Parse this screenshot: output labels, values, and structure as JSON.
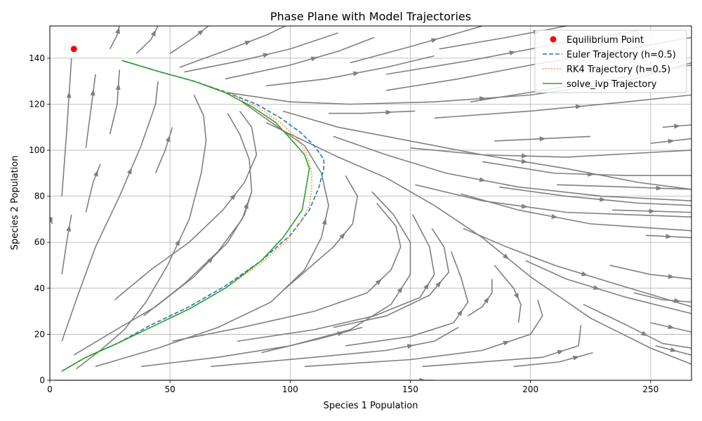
{
  "chart_data": {
    "type": "line",
    "title": "Phase Plane with Model Trajectories",
    "xlabel": "Species 1 Population",
    "ylabel": "Species 2 Population",
    "xlim": [
      0,
      267
    ],
    "ylim": [
      0,
      154
    ],
    "xticks": [
      0,
      50,
      100,
      150,
      200,
      250
    ],
    "yticks": [
      0,
      20,
      40,
      60,
      80,
      100,
      120,
      140
    ],
    "grid": true,
    "legend_position": "top-right",
    "colors": {
      "streamline": "#808080",
      "equilibrium": "#ff0000",
      "euler": "#1f77b4",
      "rk4": "#ff7f0e",
      "solve_ivp": "#2ca02c",
      "grid": "#b0b0b0"
    },
    "equilibrium": {
      "name": "Equilibrium Point",
      "x": 10,
      "y": 144
    },
    "series": [
      {
        "name": "Euler Trajectory (h=0.5)",
        "style": "dashed",
        "x": [
          5,
          15,
          28,
          42,
          58,
          73,
          88,
          100,
          108,
          112,
          114,
          114,
          110,
          104,
          96,
          86,
          74,
          60,
          46,
          30
        ],
        "y": [
          4,
          10,
          16,
          24,
          32,
          41,
          52,
          63,
          74,
          84,
          92,
          96,
          102,
          108,
          114,
          120,
          125,
          130,
          134,
          139
        ]
      },
      {
        "name": "RK4 Trajectory (h=0.5)",
        "style": "dotted",
        "x": [
          5,
          15,
          28,
          42,
          58,
          73,
          88,
          98,
          104,
          108,
          109,
          109,
          107,
          103,
          96,
          86,
          74,
          60,
          46,
          30
        ],
        "y": [
          4,
          10,
          16,
          23,
          31,
          40,
          51,
          60,
          68,
          76,
          83,
          90,
          98,
          105,
          112,
          119,
          125,
          130,
          134,
          139
        ]
      },
      {
        "name": "solve_ivp Trajectory",
        "style": "solid",
        "x": [
          5,
          15,
          28,
          42,
          58,
          73,
          88,
          97,
          105,
          108,
          106,
          101,
          94,
          84,
          73,
          60,
          46,
          30
        ],
        "y": [
          4,
          10,
          16,
          23,
          31,
          40,
          52,
          62,
          74,
          92,
          98,
          104,
          112,
          119,
          125,
          130,
          134,
          139
        ]
      }
    ],
    "streamlines": [
      [
        [
          5,
          17
        ],
        [
          11,
          35
        ],
        [
          19,
          58
        ],
        [
          29,
          80
        ],
        [
          38,
          102
        ],
        [
          44,
          120
        ],
        [
          45,
          130
        ]
      ],
      [
        [
          11,
          5
        ],
        [
          21,
          13
        ],
        [
          31,
          22
        ],
        [
          40,
          34
        ],
        [
          49,
          50
        ],
        [
          58,
          70
        ],
        [
          63,
          90
        ],
        [
          65,
          104
        ],
        [
          64,
          115
        ],
        [
          60,
          124
        ]
      ],
      [
        [
          10,
          11
        ],
        [
          26,
          21
        ],
        [
          44,
          32
        ],
        [
          60,
          45
        ],
        [
          74,
          60
        ],
        [
          81,
          72
        ],
        [
          84,
          82
        ]
      ],
      [
        [
          39,
          28
        ],
        [
          56,
          42
        ],
        [
          70,
          56
        ],
        [
          80,
          70
        ],
        [
          84,
          82
        ],
        [
          83,
          96
        ],
        [
          79,
          107
        ],
        [
          74,
          116
        ]
      ],
      [
        [
          27,
          35
        ],
        [
          42,
          48
        ],
        [
          58,
          60
        ],
        [
          72,
          74
        ],
        [
          81,
          86
        ],
        [
          86,
          98
        ],
        [
          84,
          110
        ],
        [
          79,
          117
        ]
      ],
      [
        [
          19,
          6
        ],
        [
          45,
          14
        ],
        [
          70,
          23
        ],
        [
          92,
          34
        ],
        [
          106,
          48
        ],
        [
          113,
          62
        ],
        [
          116,
          76
        ],
        [
          113,
          90
        ],
        [
          106,
          102
        ],
        [
          95,
          110
        ],
        [
          80,
          121
        ]
      ],
      [
        [
          38,
          6
        ],
        [
          70,
          10
        ],
        [
          100,
          15
        ],
        [
          125,
          22
        ],
        [
          142,
          33
        ],
        [
          150,
          46
        ],
        [
          150,
          60
        ],
        [
          143,
          72
        ],
        [
          134,
          82
        ]
      ],
      [
        [
          51,
          17
        ],
        [
          80,
          23
        ],
        [
          110,
          30
        ],
        [
          132,
          38
        ],
        [
          142,
          48
        ],
        [
          146,
          58
        ],
        [
          144,
          67
        ],
        [
          136,
          77
        ]
      ],
      [
        [
          67,
          6
        ],
        [
          110,
          10
        ],
        [
          140,
          13
        ],
        [
          160,
          17
        ],
        [
          170,
          23
        ]
      ],
      [
        [
          106,
          6
        ],
        [
          150,
          9
        ],
        [
          180,
          13
        ],
        [
          200,
          20
        ],
        [
          205,
          28
        ],
        [
          203,
          35
        ]
      ],
      [
        [
          155,
          6
        ],
        [
          180,
          8
        ],
        [
          205,
          10
        ],
        [
          220,
          15
        ],
        [
          221,
          24
        ]
      ],
      [
        [
          193,
          6
        ],
        [
          212,
          8
        ],
        [
          226,
          12
        ]
      ],
      [
        [
          78,
          17
        ],
        [
          110,
          22
        ],
        [
          135,
          28
        ],
        [
          154,
          36
        ],
        [
          160,
          46
        ],
        [
          158,
          58
        ],
        [
          151,
          72
        ]
      ],
      [
        [
          118,
          23
        ],
        [
          140,
          28
        ],
        [
          158,
          37
        ],
        [
          166,
          47
        ],
        [
          164,
          58
        ],
        [
          159,
          66
        ]
      ],
      [
        [
          123,
          15
        ],
        [
          150,
          19
        ],
        [
          168,
          25
        ],
        [
          174,
          34
        ],
        [
          171,
          45
        ],
        [
          167,
          56
        ]
      ],
      [
        [
          174,
          28
        ],
        [
          180,
          32
        ],
        [
          184,
          38
        ],
        [
          184,
          44
        ]
      ],
      [
        [
          185,
          50
        ],
        [
          193,
          40
        ],
        [
          196,
          33
        ],
        [
          195,
          25
        ]
      ],
      [
        [
          97,
          39
        ],
        [
          107,
          48
        ],
        [
          118,
          58
        ],
        [
          126,
          68
        ],
        [
          128,
          80
        ],
        [
          123,
          89
        ]
      ],
      [
        [
          88,
          12
        ],
        [
          112,
          18
        ],
        [
          130,
          23
        ]
      ],
      [
        [
          74,
          125
        ],
        [
          100,
          121
        ],
        [
          125,
          120
        ],
        [
          160,
          121
        ],
        [
          200,
          124
        ],
        [
          240,
          130
        ],
        [
          267,
          138
        ]
      ],
      [
        [
          97,
          117
        ],
        [
          120,
          110
        ],
        [
          150,
          104
        ],
        [
          180,
          98
        ],
        [
          215,
          92
        ],
        [
          245,
          86
        ],
        [
          267,
          83
        ]
      ],
      [
        [
          118,
          106
        ],
        [
          140,
          98
        ],
        [
          165,
          90
        ],
        [
          195,
          84
        ],
        [
          230,
          80
        ],
        [
          267,
          78
        ]
      ],
      [
        [
          90,
          112
        ],
        [
          120,
          97
        ],
        [
          140,
          88
        ],
        [
          160,
          76
        ],
        [
          180,
          62
        ],
        [
          200,
          45
        ],
        [
          225,
          27
        ],
        [
          250,
          14
        ],
        [
          267,
          7
        ]
      ],
      [
        [
          172,
          66
        ],
        [
          190,
          58
        ],
        [
          210,
          50
        ],
        [
          235,
          42
        ],
        [
          267,
          32
        ]
      ],
      [
        [
          198,
          52
        ],
        [
          215,
          44
        ],
        [
          240,
          36
        ],
        [
          267,
          29
        ]
      ],
      [
        [
          171,
          81
        ],
        [
          195,
          74
        ],
        [
          225,
          68
        ],
        [
          267,
          65
        ]
      ],
      [
        [
          152,
          85
        ],
        [
          180,
          78
        ],
        [
          215,
          73
        ],
        [
          267,
          71
        ]
      ],
      [
        [
          187,
          84
        ],
        [
          215,
          80
        ],
        [
          245,
          77
        ],
        [
          267,
          76
        ]
      ],
      [
        [
          222,
          33
        ],
        [
          240,
          24
        ],
        [
          255,
          16
        ],
        [
          267,
          14
        ]
      ],
      [
        [
          233,
          50
        ],
        [
          250,
          46
        ],
        [
          267,
          44
        ]
      ],
      [
        [
          243,
          38
        ],
        [
          255,
          35
        ],
        [
          267,
          34
        ]
      ],
      [
        [
          250,
          25
        ],
        [
          267,
          21
        ]
      ],
      [
        [
          252,
          15
        ],
        [
          267,
          11
        ]
      ],
      [
        [
          248,
          63
        ],
        [
          267,
          62
        ]
      ],
      [
        [
          234,
          74
        ],
        [
          267,
          73
        ]
      ],
      [
        [
          211,
          85
        ],
        [
          240,
          84
        ],
        [
          267,
          83
        ]
      ],
      [
        [
          180,
          95
        ],
        [
          210,
          90
        ],
        [
          240,
          89
        ],
        [
          267,
          89
        ]
      ],
      [
        [
          150,
          101
        ],
        [
          180,
          98
        ],
        [
          215,
          97
        ],
        [
          267,
          100
        ]
      ],
      [
        [
          185,
          104
        ],
        [
          225,
          106
        ]
      ],
      [
        [
          160,
          114
        ],
        [
          200,
          117
        ],
        [
          240,
          121
        ],
        [
          267,
          124
        ]
      ],
      [
        [
          175,
          121
        ],
        [
          205,
          126
        ],
        [
          235,
          131
        ],
        [
          267,
          137
        ]
      ],
      [
        [
          140,
          126
        ],
        [
          170,
          131
        ],
        [
          200,
          137
        ],
        [
          235,
          143
        ],
        [
          267,
          149
        ]
      ],
      [
        [
          140,
          133
        ],
        [
          175,
          139
        ],
        [
          210,
          146
        ],
        [
          245,
          152
        ]
      ],
      [
        [
          162,
          144
        ],
        [
          190,
          149
        ],
        [
          215,
          154
        ]
      ],
      [
        [
          125,
          138
        ],
        [
          150,
          145
        ],
        [
          170,
          151
        ],
        [
          180,
          154
        ]
      ],
      [
        [
          90,
          128
        ],
        [
          115,
          131
        ],
        [
          140,
          136
        ],
        [
          160,
          141
        ]
      ],
      [
        [
          73,
          131
        ],
        [
          100,
          137
        ],
        [
          120,
          143
        ],
        [
          135,
          149
        ]
      ],
      [
        [
          56,
          134
        ],
        [
          80,
          139
        ],
        [
          100,
          144
        ],
        [
          120,
          151
        ]
      ],
      [
        [
          54,
          136
        ],
        [
          75,
          144
        ],
        [
          90,
          150
        ],
        [
          98,
          154
        ]
      ],
      [
        [
          50,
          142
        ],
        [
          60,
          149
        ],
        [
          66,
          154
        ]
      ],
      [
        [
          36,
          142
        ],
        [
          42,
          148
        ],
        [
          45,
          154
        ]
      ],
      [
        [
          25,
          144
        ],
        [
          28,
          150
        ],
        [
          29,
          154
        ]
      ],
      [
        [
          116,
          116
        ],
        [
          130,
          116
        ],
        [
          152,
          117
        ]
      ],
      [
        [
          255,
          110
        ],
        [
          267,
          111
        ]
      ],
      [
        [
          250,
          103
        ],
        [
          267,
          105
        ]
      ],
      [
        [
          5,
          80
        ],
        [
          7,
          108
        ],
        [
          9,
          140
        ]
      ],
      [
        [
          5,
          46
        ],
        [
          7,
          60
        ],
        [
          9,
          72
        ]
      ],
      [
        [
          15,
          101
        ],
        [
          17,
          117
        ],
        [
          19,
          133
        ]
      ],
      [
        [
          25,
          107
        ],
        [
          28,
          120
        ],
        [
          29,
          135
        ]
      ],
      [
        [
          15,
          73
        ],
        [
          18,
          86
        ],
        [
          21,
          94
        ]
      ],
      [
        [
          44,
          90
        ],
        [
          48,
          100
        ],
        [
          51,
          110
        ]
      ],
      [
        [
          0,
          71
        ],
        [
          1,
          68
        ]
      ],
      [
        [
          2,
          0
        ],
        [
          150,
          0
        ],
        [
          160,
          0
        ]
      ]
    ]
  }
}
